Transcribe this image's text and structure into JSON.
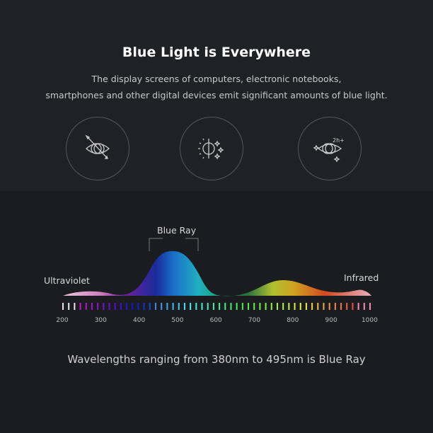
{
  "header": {
    "title": "Blue Light is Everywhere",
    "subtitle_line1": "The display screens of computers, electronic notebooks,",
    "subtitle_line2": "smartphones and other digital devices emit significant amounts of blue light."
  },
  "icons": [
    "eye-arrow-icon",
    "sun-brightness-icon",
    "eye-strain-2h-icon"
  ],
  "icon_text_2h": "2h+",
  "spectrum": {
    "blue_ray_label": "Blue Ray",
    "ultraviolet_label": "Ultraviolet",
    "infrared_label": "Infrared",
    "tick_labels": [
      "200",
      "300",
      "400",
      "500",
      "600",
      "700",
      "800",
      "900",
      "1000"
    ]
  },
  "footer": "Wavelengths ranging from 380nm to 495nm is Blue Ray"
}
